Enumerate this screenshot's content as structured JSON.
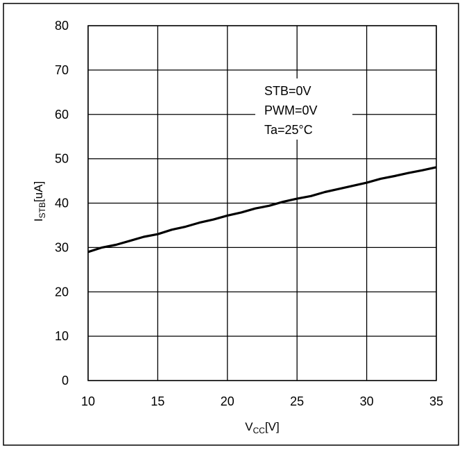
{
  "chart_data": {
    "type": "line",
    "x": [
      10,
      11,
      12,
      13,
      14,
      15,
      16,
      17,
      18,
      19,
      20,
      21,
      22,
      23,
      24,
      25,
      26,
      27,
      28,
      29,
      30,
      31,
      32,
      33,
      34,
      35
    ],
    "series": [
      {
        "values": [
          29.0,
          30.0,
          30.6,
          31.5,
          32.4,
          33.0,
          34.0,
          34.7,
          35.6,
          36.3,
          37.2,
          37.9,
          38.8,
          39.4,
          40.3,
          41.0,
          41.6,
          42.5,
          43.2,
          43.9,
          44.6,
          45.5,
          46.1,
          46.8,
          47.4,
          48.1
        ]
      }
    ],
    "xlim": [
      10,
      35
    ],
    "ylim": [
      0,
      80
    ],
    "xticks": [
      "10",
      "15",
      "20",
      "25",
      "30",
      "35"
    ],
    "yticks": [
      "0",
      "10",
      "20",
      "30",
      "40",
      "50",
      "60",
      "70",
      "80"
    ],
    "xlabel": {
      "main": "V",
      "sub": "CC",
      "unit": "[V]"
    },
    "ylabel": {
      "main": "I",
      "sub": "STB",
      "unit": "[uA]"
    },
    "annotation": [
      "STB=0V",
      "PWM=0V",
      "Ta=25°C"
    ],
    "grid": true,
    "colors": {
      "line": "#000000",
      "grid": "#000000",
      "background": "#ffffff"
    }
  }
}
